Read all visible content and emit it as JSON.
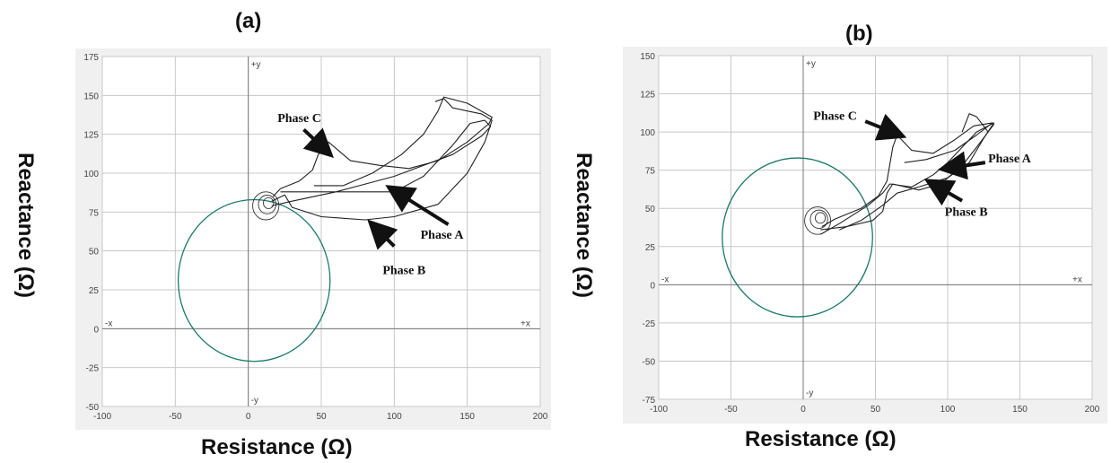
{
  "figure": {
    "xlabel": "Resistance (Ω)",
    "ylabel": "Reactance (Ω)"
  },
  "chart_data": [
    {
      "panel": "(a)",
      "type": "line",
      "xlim": [
        -100,
        200
      ],
      "ylim": [
        -50,
        175
      ],
      "x_ticks": [
        "-100",
        "-50",
        "0",
        "50",
        "100",
        "150",
        "200"
      ],
      "y_ticks": [
        "175",
        "150",
        "125",
        "100",
        "75",
        "50",
        "25",
        "0",
        "-25",
        "-50"
      ],
      "axis_names": {
        "pos_y": "+y",
        "neg_y": "-y",
        "neg_x": "-x",
        "pos_x": "+x"
      },
      "grid": true,
      "circle": {
        "center": [
          4,
          31
        ],
        "radius": 52,
        "color": "#1a7a6a"
      },
      "series": [
        {
          "name": "Phase A",
          "points": [
            [
              16,
              79
            ],
            [
              30,
              82
            ],
            [
              60,
              88
            ],
            [
              100,
              98
            ],
            [
              140,
              112
            ],
            [
              160,
              124
            ],
            [
              166,
              130
            ],
            [
              162,
              134
            ],
            [
              152,
              132
            ],
            [
              140,
              118
            ],
            [
              120,
              98
            ],
            [
              100,
              88
            ],
            [
              70,
              88
            ],
            [
              45,
              88
            ],
            [
              32,
              88
            ],
            [
              22,
              88
            ]
          ]
        },
        {
          "name": "Phase B",
          "points": [
            [
              16,
              82
            ],
            [
              25,
              86
            ],
            [
              30,
              78
            ],
            [
              50,
              72
            ],
            [
              80,
              70
            ],
            [
              100,
              72
            ],
            [
              130,
              80
            ],
            [
              150,
              100
            ],
            [
              162,
              120
            ],
            [
              167,
              134
            ],
            [
              160,
              138
            ],
            [
              150,
              140
            ],
            [
              140,
              142
            ],
            [
              134,
              148
            ],
            [
              128,
              146
            ]
          ]
        },
        {
          "name": "Phase C",
          "points": [
            [
              17,
              85
            ],
            [
              22,
              90
            ],
            [
              35,
              95
            ],
            [
              44,
              102
            ],
            [
              48,
              112
            ],
            [
              55,
              120
            ],
            [
              70,
              108
            ],
            [
              90,
              105
            ],
            [
              110,
              103
            ],
            [
              130,
              108
            ],
            [
              150,
              120
            ],
            [
              165,
              132
            ],
            [
              167,
              136
            ],
            [
              150,
              145
            ],
            [
              134,
              149
            ],
            [
              130,
              140
            ],
            [
              120,
              125
            ],
            [
              105,
              112
            ],
            [
              85,
              100
            ],
            [
              65,
              92
            ],
            [
              45,
              92
            ]
          ]
        }
      ],
      "loop_center": [
        12,
        79
      ],
      "annotations": [
        {
          "text": "Phase C",
          "label_at": [
            20,
            133
          ],
          "arrow_from": [
            38,
            128
          ],
          "arrow_to": [
            55,
            113
          ]
        },
        {
          "text": "Phase A",
          "label_at": [
            118,
            58
          ],
          "arrow_from": [
            137,
            67
          ],
          "arrow_to": [
            98,
            90
          ]
        },
        {
          "text": "Phase B",
          "label_at": [
            92,
            35
          ],
          "arrow_from": [
            100,
            53
          ],
          "arrow_to": [
            85,
            67
          ]
        }
      ]
    },
    {
      "panel": "(b)",
      "type": "line",
      "xlim": [
        -100,
        200
      ],
      "ylim": [
        -75,
        150
      ],
      "x_ticks": [
        "-100",
        "-50",
        "0",
        "50",
        "100",
        "150",
        "200"
      ],
      "y_ticks": [
        "150",
        "125",
        "100",
        "75",
        "50",
        "25",
        "0",
        "-25",
        "-50",
        "-75"
      ],
      "axis_names": {
        "pos_y": "+y",
        "neg_y": "-y",
        "neg_x": "-x",
        "pos_x": "+x"
      },
      "grid": true,
      "circle": {
        "center": [
          -4,
          31
        ],
        "radius": 52,
        "color": "#1a7a6a"
      },
      "series": [
        {
          "name": "Phase A",
          "points": [
            [
              12,
              33
            ],
            [
              25,
              40
            ],
            [
              45,
              52
            ],
            [
              55,
              60
            ],
            [
              60,
              66
            ],
            [
              75,
              64
            ],
            [
              90,
              72
            ],
            [
              100,
              80
            ],
            [
              110,
              90
            ],
            [
              120,
              100
            ],
            [
              128,
              104
            ],
            [
              132,
              106
            ],
            [
              125,
              96
            ],
            [
              115,
              80
            ],
            [
              100,
              70
            ],
            [
              80,
              64
            ],
            [
              65,
              60
            ],
            [
              55,
              52
            ],
            [
              40,
              42
            ],
            [
              25,
              36
            ]
          ]
        },
        {
          "name": "Phase B",
          "points": [
            [
              12,
              36
            ],
            [
              30,
              38
            ],
            [
              48,
              42
            ],
            [
              55,
              48
            ],
            [
              58,
              60
            ],
            [
              62,
              66
            ],
            [
              80,
              62
            ],
            [
              95,
              66
            ],
            [
              110,
              78
            ],
            [
              120,
              90
            ],
            [
              128,
              100
            ],
            [
              132,
              105
            ],
            [
              128,
              100
            ],
            [
              120,
              110
            ],
            [
              115,
              112
            ],
            [
              110,
              100
            ]
          ]
        },
        {
          "name": "Phase C",
          "points": [
            [
              13,
              38
            ],
            [
              22,
              43
            ],
            [
              40,
              50
            ],
            [
              52,
              58
            ],
            [
              58,
              68
            ],
            [
              62,
              90
            ],
            [
              65,
              98
            ],
            [
              75,
              88
            ],
            [
              90,
              86
            ],
            [
              105,
              95
            ],
            [
              118,
              104
            ],
            [
              131,
              106
            ],
            [
              120,
              98
            ],
            [
              105,
              88
            ],
            [
              85,
              82
            ],
            [
              70,
              80
            ]
          ]
        }
      ],
      "loop_center": [
        10,
        42
      ],
      "annotations": [
        {
          "text": "Phase C",
          "label_at": [
            7,
            108
          ],
          "arrow_from": [
            43,
            107
          ],
          "arrow_to": [
            67,
            98
          ]
        },
        {
          "text": "Phase A",
          "label_at": [
            128,
            80
          ],
          "arrow_from": [
            126,
            80
          ],
          "arrow_to": [
            98,
            76
          ]
        },
        {
          "text": "Phase B",
          "label_at": [
            98,
            45
          ],
          "arrow_from": [
            110,
            55
          ],
          "arrow_to": [
            88,
            67
          ]
        }
      ]
    }
  ]
}
